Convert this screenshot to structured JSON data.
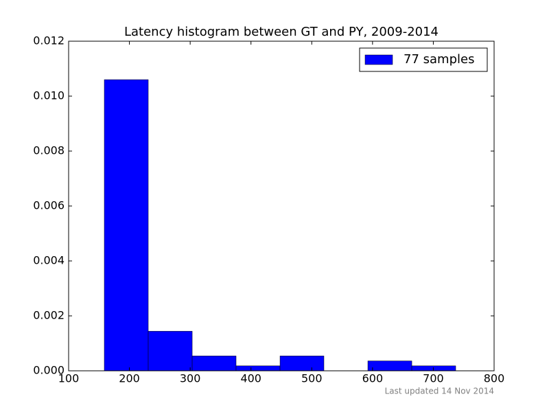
{
  "chart_data": {
    "type": "histogram",
    "title": "Latency histogram between GT and PY, 2009-2014",
    "bins": [
      158.7,
      231.0,
      303.3,
      375.5,
      447.8,
      520.0,
      592.3,
      664.6,
      736.8
    ],
    "series": [
      {
        "name": "77 samples",
        "color": "#0000ff",
        "values": [
          0.0106,
          0.00144,
          0.00054,
          0.00018,
          0.00054,
          0,
          0.00036,
          0.00018
        ]
      }
    ],
    "xlim": [
      100,
      800
    ],
    "xticks": [
      100,
      200,
      300,
      400,
      500,
      600,
      700,
      800
    ],
    "ylim": [
      0,
      0.012
    ],
    "yticks": [
      {
        "value": 0,
        "label": "0.000"
      },
      {
        "value": 0.002,
        "label": "0.002"
      },
      {
        "value": 0.004,
        "label": "0.004"
      },
      {
        "value": 0.006,
        "label": "0.006"
      },
      {
        "value": 0.008,
        "label": "0.008"
      },
      {
        "value": 0.01,
        "label": "0.010"
      },
      {
        "value": 0.012,
        "label": "0.012"
      }
    ],
    "legend": "upper right",
    "footnote": "Last updated 14 Nov 2014"
  }
}
